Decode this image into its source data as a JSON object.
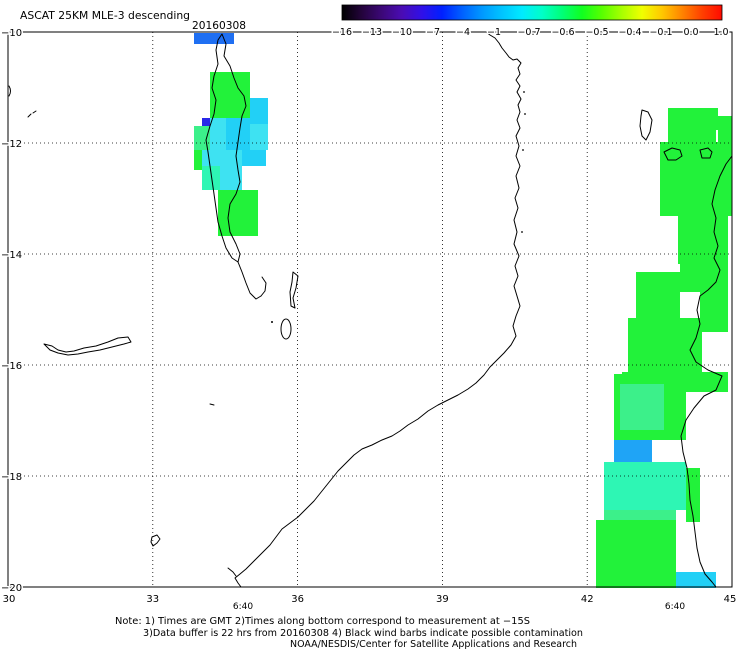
{
  "title": "ASCAT 25KM MLE-3 descending",
  "date": "20160308",
  "colorbar": {
    "ticks": [
      "−16",
      "−13",
      "−10",
      "−7",
      "−4",
      "−1",
      "−0.7",
      "−0.6",
      "−0.5",
      "−0.4",
      "−0.1",
      "0.0",
      "1.0"
    ],
    "colors": [
      "#000000",
      "#24043c",
      "#3c0878",
      "#4a0cb4",
      "#3010e8",
      "#0020ff",
      "#0060ff",
      "#0098ff",
      "#00c4ff",
      "#00eaff",
      "#00ffc8",
      "#00ff78",
      "#10ff20",
      "#58ff00",
      "#a8ff00",
      "#f0ff00",
      "#ffc800",
      "#ff8400",
      "#ff4000",
      "#ff0a00"
    ]
  },
  "axes": {
    "lat_labels": [
      "−10",
      "−12",
      "−14",
      "−16",
      "−18",
      "−20"
    ],
    "lon_labels": [
      "30",
      "33",
      "36",
      "39",
      "42",
      "45"
    ]
  },
  "pass_times": [
    "6:40",
    "6:40"
  ],
  "notes": [
    "Note: 1) Times are GMT 2)Times along bottom correspond to measurement at −15S",
    "3)Data buffer is 22 hrs from 20160308 4) Black wind barbs indicate possible contamination",
    "NOAA/NESDIS/Center for Satellite Applications and Research"
  ],
  "colors": {
    "pass_time": "#e0261a",
    "coastline": "#000000",
    "background": "#ffffff"
  },
  "palette": {
    "blue": "#1f6ff2",
    "dark_blue": "#2a28e8",
    "sky": "#1fa4f6",
    "cyan": "#22d0f6",
    "light_cyan": "#3ee2f2",
    "aqua": "#2ef6b4",
    "mint": "#3cf08a",
    "green": "#22f23a"
  }
}
